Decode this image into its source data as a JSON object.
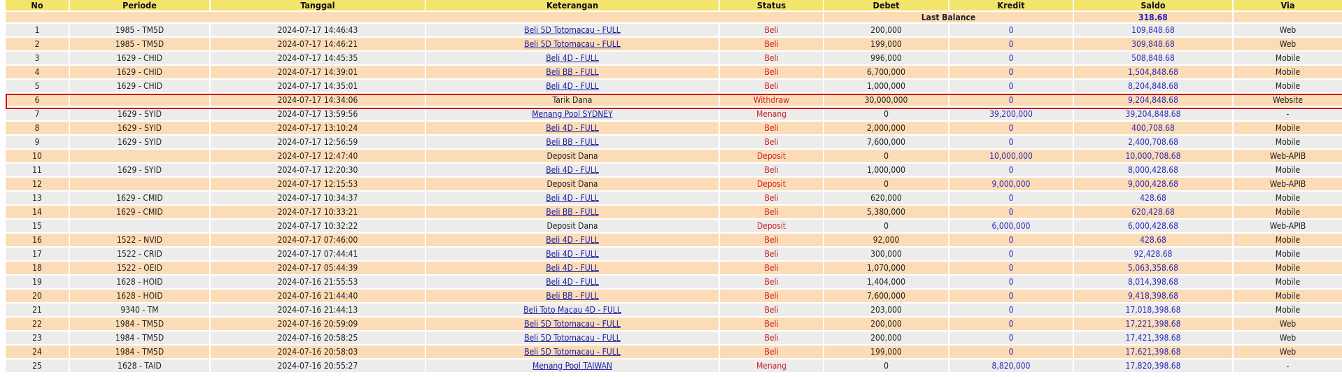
{
  "table": {
    "columns": [
      "No",
      "Periode",
      "Tanggal",
      "Keterangan",
      "Status",
      "Debet",
      "Kredit",
      "Saldo",
      "Via"
    ],
    "last_balance_label": "Last Balance",
    "last_balance_value": "318.68",
    "highlighted_row": 6,
    "rows": [
      {
        "no": "1",
        "periode": "1985 - TM5D",
        "tanggal": "2024-07-17 14:46:43",
        "keterangan": "Beli 5D Totomacau - FULL",
        "link": true,
        "status": "Beli",
        "debet": "200,000",
        "kredit": "0",
        "saldo": "109,848.68",
        "via": "Web"
      },
      {
        "no": "2",
        "periode": "1985 - TM5D",
        "tanggal": "2024-07-17 14:46:21",
        "keterangan": "Beli 5D Totomacau - FULL",
        "link": true,
        "status": "Beli",
        "debet": "199,000",
        "kredit": "0",
        "saldo": "309,848.68",
        "via": "Web"
      },
      {
        "no": "3",
        "periode": "1629 - CHID",
        "tanggal": "2024-07-17 14:45:35",
        "keterangan": "Beli 4D - FULL",
        "link": true,
        "status": "Beli",
        "debet": "996,000",
        "kredit": "0",
        "saldo": "508,848.68",
        "via": "Mobile"
      },
      {
        "no": "4",
        "periode": "1629 - CHID",
        "tanggal": "2024-07-17 14:39:01",
        "keterangan": "Beli BB - FULL",
        "link": true,
        "status": "Beli",
        "debet": "6,700,000",
        "kredit": "0",
        "saldo": "1,504,848.68",
        "via": "Mobile"
      },
      {
        "no": "5",
        "periode": "1629 - CHID",
        "tanggal": "2024-07-17 14:35:01",
        "keterangan": "Beli 4D - FULL",
        "link": true,
        "status": "Beli",
        "debet": "1,000,000",
        "kredit": "0",
        "saldo": "8,204,848.68",
        "via": "Mobile"
      },
      {
        "no": "6",
        "periode": "",
        "tanggal": "2024-07-17 14:34:06",
        "keterangan": "Tarik Dana",
        "link": false,
        "status": "Withdraw",
        "debet": "30,000,000",
        "kredit": "0",
        "saldo": "9,204,848.68",
        "via": "Website"
      },
      {
        "no": "7",
        "periode": "1629 - SYID",
        "tanggal": "2024-07-17 13:59:56",
        "keterangan": "Menang Pool SYDNEY",
        "link": true,
        "status": "Menang",
        "debet": "0",
        "kredit": "39,200,000",
        "saldo": "39,204,848.68",
        "via": "-"
      },
      {
        "no": "8",
        "periode": "1629 - SYID",
        "tanggal": "2024-07-17 13:10:24",
        "keterangan": "Beli 4D - FULL",
        "link": true,
        "status": "Beli",
        "debet": "2,000,000",
        "kredit": "0",
        "saldo": "400,708.68",
        "via": "Mobile"
      },
      {
        "no": "9",
        "periode": "1629 - SYID",
        "tanggal": "2024-07-17 12:56:59",
        "keterangan": "Beli BB - FULL",
        "link": true,
        "status": "Beli",
        "debet": "7,600,000",
        "kredit": "0",
        "saldo": "2,400,708.68",
        "via": "Mobile"
      },
      {
        "no": "10",
        "periode": "",
        "tanggal": "2024-07-17 12:47:40",
        "keterangan": "Deposit Dana",
        "link": false,
        "status": "Deposit",
        "debet": "0",
        "kredit": "10,000,000",
        "saldo": "10,000,708.68",
        "via": "Web-APIB"
      },
      {
        "no": "11",
        "periode": "1629 - SYID",
        "tanggal": "2024-07-17 12:20:30",
        "keterangan": "Beli 4D - FULL",
        "link": true,
        "status": "Beli",
        "debet": "1,000,000",
        "kredit": "0",
        "saldo": "8,000,428.68",
        "via": "Mobile"
      },
      {
        "no": "12",
        "periode": "",
        "tanggal": "2024-07-17 12:15:53",
        "keterangan": "Deposit Dana",
        "link": false,
        "status": "Deposit",
        "debet": "0",
        "kredit": "9,000,000",
        "saldo": "9,000,428.68",
        "via": "Web-APIB"
      },
      {
        "no": "13",
        "periode": "1629 - CMID",
        "tanggal": "2024-07-17 10:34:37",
        "keterangan": "Beli 4D - FULL",
        "link": true,
        "status": "Beli",
        "debet": "620,000",
        "kredit": "0",
        "saldo": "428.68",
        "via": "Mobile"
      },
      {
        "no": "14",
        "periode": "1629 - CMID",
        "tanggal": "2024-07-17 10:33:21",
        "keterangan": "Beli BB - FULL",
        "link": true,
        "status": "Beli",
        "debet": "5,380,000",
        "kredit": "0",
        "saldo": "620,428.68",
        "via": "Mobile"
      },
      {
        "no": "15",
        "periode": "",
        "tanggal": "2024-07-17 10:32:22",
        "keterangan": "Deposit Dana",
        "link": false,
        "status": "Deposit",
        "debet": "0",
        "kredit": "6,000,000",
        "saldo": "6,000,428.68",
        "via": "Web-APIB"
      },
      {
        "no": "16",
        "periode": "1522 - NVID",
        "tanggal": "2024-07-17 07:46:00",
        "keterangan": "Beli 4D - FULL",
        "link": true,
        "status": "Beli",
        "debet": "92,000",
        "kredit": "0",
        "saldo": "428.68",
        "via": "Mobile"
      },
      {
        "no": "17",
        "periode": "1522 - CRID",
        "tanggal": "2024-07-17 07:44:41",
        "keterangan": "Beli 4D - FULL",
        "link": true,
        "status": "Beli",
        "debet": "300,000",
        "kredit": "0",
        "saldo": "92,428.68",
        "via": "Mobile"
      },
      {
        "no": "18",
        "periode": "1522 - OEID",
        "tanggal": "2024-07-17 05:44:39",
        "keterangan": "Beli 4D - FULL",
        "link": true,
        "status": "Beli",
        "debet": "1,070,000",
        "kredit": "0",
        "saldo": "5,063,358.68",
        "via": "Mobile"
      },
      {
        "no": "19",
        "periode": "1628 - HOID",
        "tanggal": "2024-07-16 21:55:53",
        "keterangan": "Beli 4D - FULL",
        "link": true,
        "status": "Beli",
        "debet": "1,404,000",
        "kredit": "0",
        "saldo": "8,014,398.68",
        "via": "Mobile"
      },
      {
        "no": "20",
        "periode": "1628 - HOID",
        "tanggal": "2024-07-16 21:44:40",
        "keterangan": "Beli BB - FULL",
        "link": true,
        "status": "Beli",
        "debet": "7,600,000",
        "kredit": "0",
        "saldo": "9,418,398.68",
        "via": "Mobile"
      },
      {
        "no": "21",
        "periode": "9340 - TM",
        "tanggal": "2024-07-16 21:44:13",
        "keterangan": "Beli Toto Macau 4D - FULL",
        "link": true,
        "status": "Beli",
        "debet": "203,000",
        "kredit": "0",
        "saldo": "17,018,398.68",
        "via": "Mobile"
      },
      {
        "no": "22",
        "periode": "1984 - TM5D",
        "tanggal": "2024-07-16 20:59:09",
        "keterangan": "Beli 5D Totomacau - FULL",
        "link": true,
        "status": "Beli",
        "debet": "200,000",
        "kredit": "0",
        "saldo": "17,221,398.68",
        "via": "Web"
      },
      {
        "no": "23",
        "periode": "1984 - TM5D",
        "tanggal": "2024-07-16 20:58:25",
        "keterangan": "Beli 5D Totomacau - FULL",
        "link": true,
        "status": "Beli",
        "debet": "200,000",
        "kredit": "0",
        "saldo": "17,421,398.68",
        "via": "Web"
      },
      {
        "no": "24",
        "periode": "1984 - TM5D",
        "tanggal": "2024-07-16 20:58:03",
        "keterangan": "Beli 5D Totomacau - FULL",
        "link": true,
        "status": "Beli",
        "debet": "199,000",
        "kredit": "0",
        "saldo": "17,621,398.68",
        "via": "Web"
      },
      {
        "no": "25",
        "periode": "1628 - TAID",
        "tanggal": "2024-07-16 20:55:27",
        "keterangan": "Menang Pool TAIWAN",
        "link": true,
        "status": "Menang",
        "debet": "0",
        "kredit": "8,820,000",
        "saldo": "17,820,398.68",
        "via": "-"
      }
    ]
  }
}
